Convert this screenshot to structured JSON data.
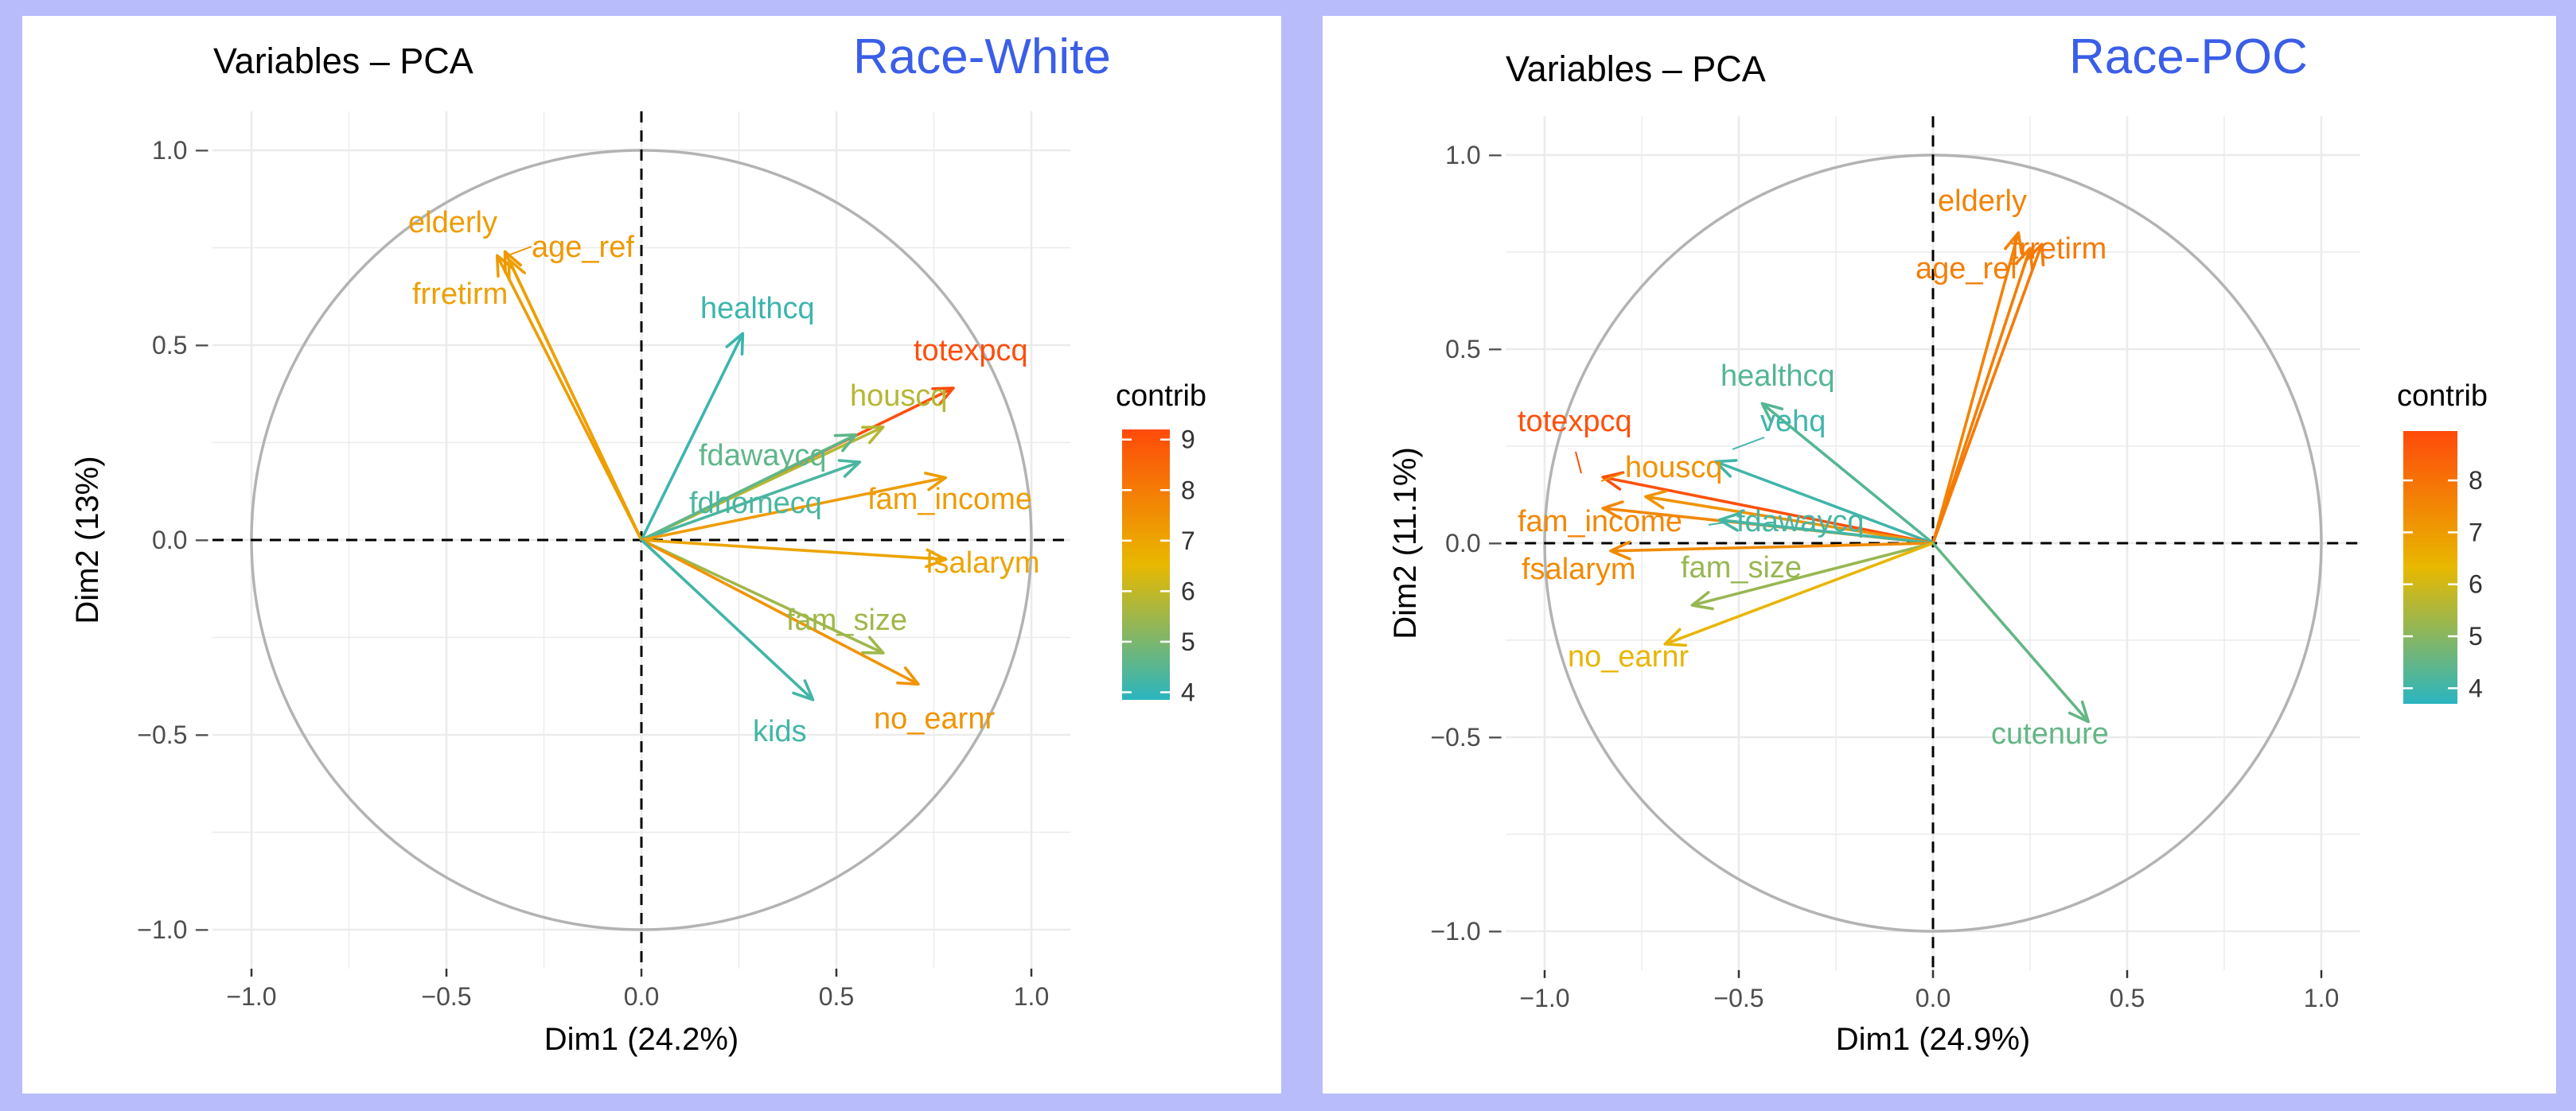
{
  "colors": {
    "background": "#b8bcfb",
    "panel": "#ffffff",
    "race_label": "#3a5ee8",
    "grid": "#ebebeb",
    "circle": "#b3b3b3",
    "gradient_low": "#2ab5c0",
    "gradient_mid": "#e8b800",
    "gradient_high": "#ff4a0a"
  },
  "chart_data": [
    {
      "type": "scatter",
      "title": "Variables – PCA",
      "annotation": "Race-White",
      "xlabel": "Dim1 (24.2%)",
      "ylabel": "Dim2 (13%)",
      "xlim": [
        -1.1,
        1.1
      ],
      "ylim": [
        -1.1,
        1.1
      ],
      "x_ticks": [
        "−1.0",
        "−0.5",
        "0.0",
        "0.5",
        "1.0"
      ],
      "y_ticks": [
        "1.0 −",
        "0.5 −",
        "0.0 −",
        "−0.5 −",
        "−1.0 −"
      ],
      "grid": true,
      "legend": {
        "title": "contrib",
        "position": "right",
        "range": [
          3.85,
          9.2
        ],
        "ticks": [
          "4",
          "5",
          "6",
          "7",
          "8",
          "9"
        ]
      },
      "vectors": [
        {
          "label": "elderly",
          "x": -0.37,
          "y": 0.73,
          "contrib": 7.2
        },
        {
          "label": "age_ref",
          "x": -0.35,
          "y": 0.74,
          "contrib": 7.3
        },
        {
          "label": "frretirm",
          "x": -0.34,
          "y": 0.72,
          "contrib": 7.1
        },
        {
          "label": "healthcq",
          "x": 0.26,
          "y": 0.53,
          "contrib": 4.1
        },
        {
          "label": "totexpcq",
          "x": 0.8,
          "y": 0.39,
          "contrib": 9.1
        },
        {
          "label": "houscq",
          "x": 0.62,
          "y": 0.29,
          "contrib": 5.8
        },
        {
          "label": "fdawaycq",
          "x": 0.55,
          "y": 0.27,
          "contrib": 4.6
        },
        {
          "label": "fdhomecq",
          "x": 0.56,
          "y": 0.2,
          "contrib": 4.3
        },
        {
          "label": "fam_income",
          "x": 0.78,
          "y": 0.16,
          "contrib": 7.2
        },
        {
          "label": "fsalarym",
          "x": 0.78,
          "y": -0.05,
          "contrib": 7.0
        },
        {
          "label": "fam_size",
          "x": 0.62,
          "y": -0.29,
          "contrib": 5.5
        },
        {
          "label": "no_earnr",
          "x": 0.71,
          "y": -0.37,
          "contrib": 7.4
        },
        {
          "label": "kids",
          "x": 0.44,
          "y": -0.41,
          "contrib": 4.2
        }
      ]
    },
    {
      "type": "scatter",
      "title": "Variables – PCA",
      "annotation": "Race-POC",
      "xlabel": "Dim1 (24.9%)",
      "ylabel": "Dim2 (11.1%)",
      "xlim": [
        -1.1,
        1.1
      ],
      "ylim": [
        -1.1,
        1.1
      ],
      "x_ticks": [
        "−1.0",
        "−0.5",
        "0.0",
        "0.5",
        "1.0"
      ],
      "y_ticks": [
        "1.0 −",
        "0.5 −",
        "0.0 −",
        "−0.5 −",
        "−1.0 −"
      ],
      "grid": true,
      "legend": {
        "title": "contrib",
        "position": "right",
        "range": [
          3.7,
          8.95
        ],
        "ticks": [
          "4",
          "5",
          "6",
          "7",
          "8"
        ]
      },
      "vectors": [
        {
          "label": "elderly",
          "x": 0.22,
          "y": 0.8,
          "contrib": 7.6
        },
        {
          "label": "age_ref",
          "x": 0.25,
          "y": 0.76,
          "contrib": 7.7
        },
        {
          "label": "frretirm",
          "x": 0.28,
          "y": 0.77,
          "contrib": 7.8
        },
        {
          "label": "healthcq",
          "x": -0.44,
          "y": 0.36,
          "contrib": 4.3
        },
        {
          "label": "vehq",
          "x": -0.56,
          "y": 0.21,
          "contrib": 4.0
        },
        {
          "label": "totexpcq",
          "x": -0.85,
          "y": 0.17,
          "contrib": 8.8
        },
        {
          "label": "houscq",
          "x": -0.74,
          "y": 0.12,
          "contrib": 7.2
        },
        {
          "label": "fam_income",
          "x": -0.85,
          "y": 0.09,
          "contrib": 7.5
        },
        {
          "label": "fdawaycq",
          "x": -0.55,
          "y": 0.06,
          "contrib": 4.1
        },
        {
          "label": "fsalarym",
          "x": -0.83,
          "y": -0.02,
          "contrib": 7.4
        },
        {
          "label": "fam_size",
          "x": -0.62,
          "y": -0.16,
          "contrib": 5.2
        },
        {
          "label": "no_earnr",
          "x": -0.69,
          "y": -0.26,
          "contrib": 6.4
        },
        {
          "label": "cutenure",
          "x": 0.4,
          "y": -0.46,
          "contrib": 4.5
        }
      ]
    }
  ]
}
